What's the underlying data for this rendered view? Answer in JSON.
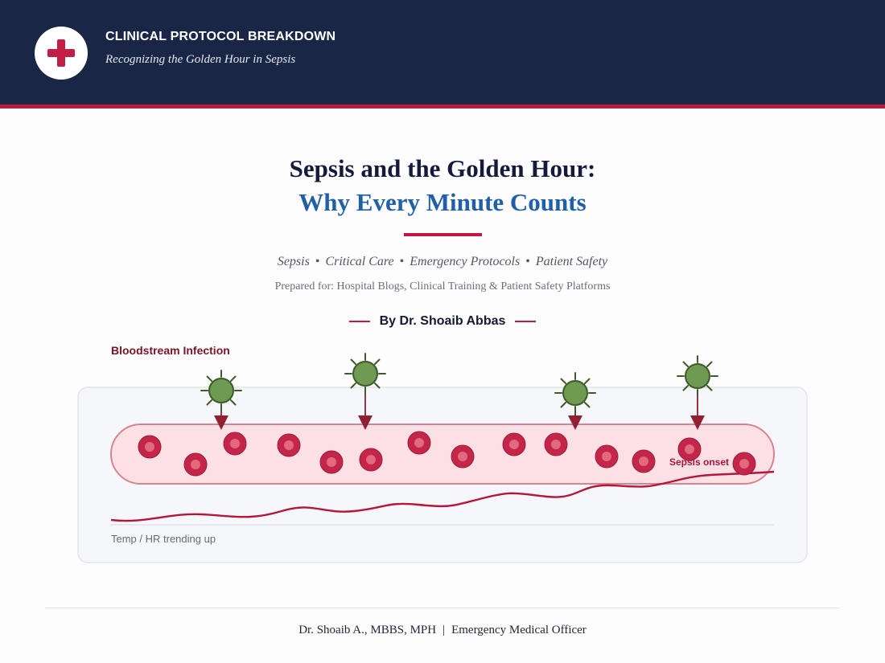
{
  "header": {
    "logo_icon": "medical-cross-icon",
    "title": "CLINICAL PROTOCOL BREAKDOWN",
    "subtitle": "Recognizing the Golden Hour in Sepsis"
  },
  "main": {
    "title_line1": "Sepsis and the Golden Hour:",
    "title_line2": "Why Every Minute Counts",
    "tags": [
      "Sepsis",
      "Critical Care",
      "Emergency Protocols",
      "Patient Safety"
    ],
    "prepared_for": "Prepared for: Hospital Blogs, Clinical Training & Patient Safety Platforms",
    "byline": "By Dr. Shoaib Abbas"
  },
  "illustration": {
    "infection_label": "Bloodstream Infection",
    "onset_label": "Sepsis onset",
    "trend_label": "Temp / HR trending up",
    "bacteria_icon": "bacteria-icon",
    "blood_cell_icon": "red-blood-cell-icon"
  },
  "footer": {
    "author": "Dr. Shoaib A., MBBS, MPH",
    "separator": "|",
    "role": "Emergency Medical Officer"
  },
  "colors": {
    "header_bg": "#1a2646",
    "accent_red": "#c0183c",
    "title_blue": "#2060a8",
    "bacteria_green": "#6e9a52",
    "vessel_fill": "#fbe1e5"
  }
}
